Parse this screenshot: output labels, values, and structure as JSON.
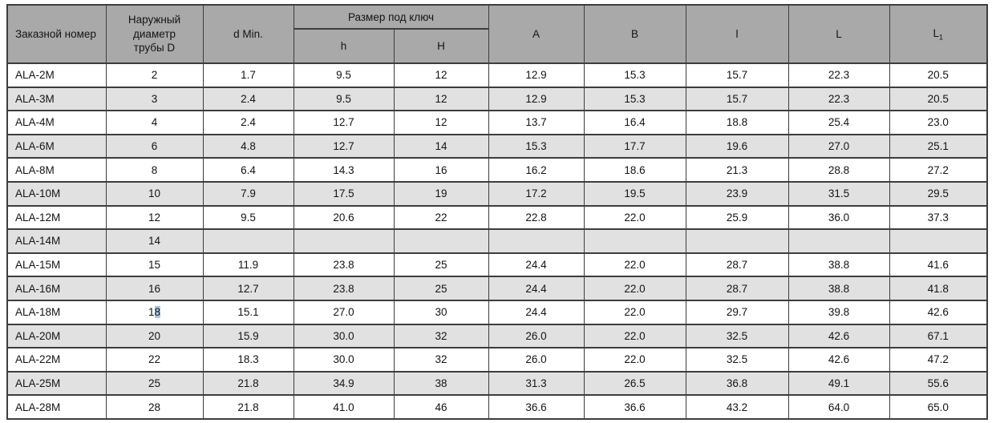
{
  "colors": {
    "header_bg": "#a9a9a9",
    "row_alt_bg": "#e1e1e1",
    "border_color": "#3d3d3d",
    "selection_bg": "#a9c9e8",
    "text_color": "#141414",
    "page_bg": "#ffffff"
  },
  "table": {
    "headers": {
      "order_number": "Заказной номер",
      "outer_diameter": "Наружный\nдиаметр\nтрубы D",
      "d_min": "d Min.",
      "wrench_size": "Размер под ключ",
      "h": "h",
      "H": "H",
      "A": "A",
      "B": "B",
      "l": "l",
      "L": "L",
      "L1_base": "L",
      "L1_sub": "1"
    },
    "rows": [
      [
        "ALA-2M",
        "2",
        "1.7",
        "9.5",
        "12",
        "12.9",
        "15.3",
        "15.7",
        "22.3",
        "20.5"
      ],
      [
        "ALA-3M",
        "3",
        "2.4",
        "9.5",
        "12",
        "12.9",
        "15.3",
        "15.7",
        "22.3",
        "20.5"
      ],
      [
        "ALA-4M",
        "4",
        "2.4",
        "12.7",
        "12",
        "13.7",
        "16.4",
        "18.8",
        "25.4",
        "23.0"
      ],
      [
        "ALA-6M",
        "6",
        "4.8",
        "12.7",
        "14",
        "15.3",
        "17.7",
        "19.6",
        "27.0",
        "25.1"
      ],
      [
        "ALA-8M",
        "8",
        "6.4",
        "14.3",
        "16",
        "16.2",
        "18.6",
        "21.3",
        "28.8",
        "27.2"
      ],
      [
        "ALA-10M",
        "10",
        "7.9",
        "17.5",
        "19",
        "17.2",
        "19.5",
        "23.9",
        "31.5",
        "29.5"
      ],
      [
        "ALA-12M",
        "12",
        "9.5",
        "20.6",
        "22",
        "22.8",
        "22.0",
        "25.9",
        "36.0",
        "37.3"
      ],
      [
        "ALA-14M",
        "14",
        "",
        "",
        "",
        "",
        "",
        "",
        "",
        ""
      ],
      [
        "ALA-15M",
        "15",
        "11.9",
        "23.8",
        "25",
        "24.4",
        "22.0",
        "28.7",
        "38.8",
        "41.6"
      ],
      [
        "ALA-16M",
        "16",
        "12.7",
        "23.8",
        "25",
        "24.4",
        "22.0",
        "28.7",
        "38.8",
        "41.8"
      ],
      [
        "ALA-18M",
        "18",
        "15.1",
        "27.0",
        "30",
        "24.4",
        "22.0",
        "29.7",
        "39.8",
        "42.6"
      ],
      [
        "ALA-20M",
        "20",
        "15.9",
        "30.0",
        "32",
        "26.0",
        "22.0",
        "32.5",
        "42.6",
        "67.1"
      ],
      [
        "ALA-22M",
        "22",
        "18.3",
        "30.0",
        "32",
        "26.0",
        "22.0",
        "32.5",
        "42.6",
        "47.2"
      ],
      [
        "ALA-25M",
        "25",
        "21.8",
        "34.9",
        "38",
        "31.3",
        "26.5",
        "36.8",
        "49.1",
        "55.6"
      ],
      [
        "ALA-28M",
        "28",
        "21.8",
        "41.0",
        "46",
        "36.6",
        "36.6",
        "43.2",
        "64.0",
        "65.0"
      ]
    ],
    "selection": {
      "row_index": 10,
      "col_index": 1,
      "before": "1",
      "selected": "8",
      "after": ""
    }
  }
}
